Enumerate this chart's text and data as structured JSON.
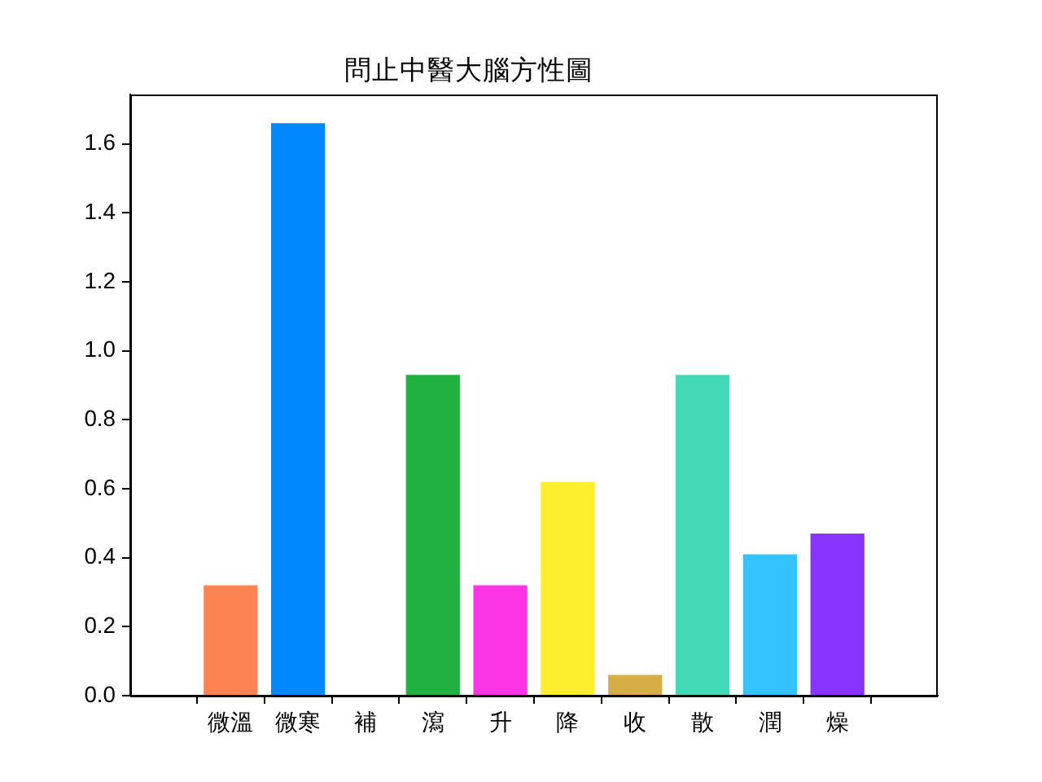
{
  "chart_data": {
    "type": "bar",
    "title": "問止中醫大腦方性圖",
    "categories": [
      "微溫",
      "微寒",
      "補",
      "瀉",
      "升",
      "降",
      "收",
      "散",
      "潤",
      "燥"
    ],
    "values": [
      0.32,
      1.66,
      0,
      0.93,
      0.32,
      0.62,
      0.06,
      0.93,
      0.41,
      0.47
    ],
    "colors": [
      "#fd8452",
      "#0088ff",
      null,
      "#21b141",
      "#fd33e6",
      "#ffee2d",
      "#d6ae45",
      "#43d8b6",
      "#33c4ff",
      "#8833ff"
    ],
    "ylim": [
      0,
      1.743
    ],
    "yticks": [
      {
        "value": 0,
        "label": "0.0"
      },
      0.2,
      0.4,
      0.6,
      0.8,
      {
        "value": 1,
        "label": "1.0"
      },
      1.2,
      1.4,
      1.6
    ]
  }
}
